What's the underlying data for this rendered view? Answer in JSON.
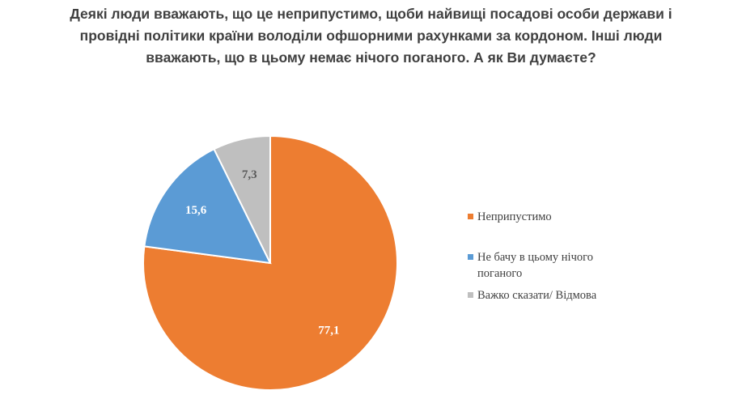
{
  "title_lines": [
    "Деякі люди вважають, що це  неприпустимо, щоби найвищі посадові особи держави і",
    "провідні політики країни володіли офшорними рахунками за кордоном. Інші люди",
    "вважають, що в цьому немає нічого поганого. А як Ви думаєте?"
  ],
  "chart_data": {
    "type": "pie",
    "title": "Деякі люди вважають, що це  неприпустимо, щоби найвищі посадові особи держави і провідні політики країни володіли офшорними рахунками за кордоном. Інші люди вважають, що в цьому немає нічого поганого. А як Ви думаєте?",
    "start_angle_deg": 0,
    "direction": "clockwise",
    "legend_position": "right",
    "slices": [
      {
        "label": "Неприпустимо",
        "value": 77.1,
        "value_label": "77,1",
        "color": "#ED7D31",
        "label_color": "#ffffff"
      },
      {
        "label": "Не бачу в цьому нічого поганого",
        "value": 15.6,
        "value_label": "15,6",
        "color": "#5B9BD5",
        "label_color": "#ffffff"
      },
      {
        "label": "Важко сказати/ Відмова",
        "value": 7.3,
        "value_label": "7,3",
        "color": "#BFBFBF",
        "label_color": "#595959"
      }
    ]
  },
  "legend": [
    {
      "lines": [
        "Неприпустимо"
      ],
      "color": "#ED7D31"
    },
    {
      "lines": [
        "Не бачу в цьому нічого",
        "поганого"
      ],
      "color": "#5B9BD5"
    },
    {
      "lines": [
        "Важко сказати/ Відмова"
      ],
      "color": "#BFBFBF"
    }
  ]
}
